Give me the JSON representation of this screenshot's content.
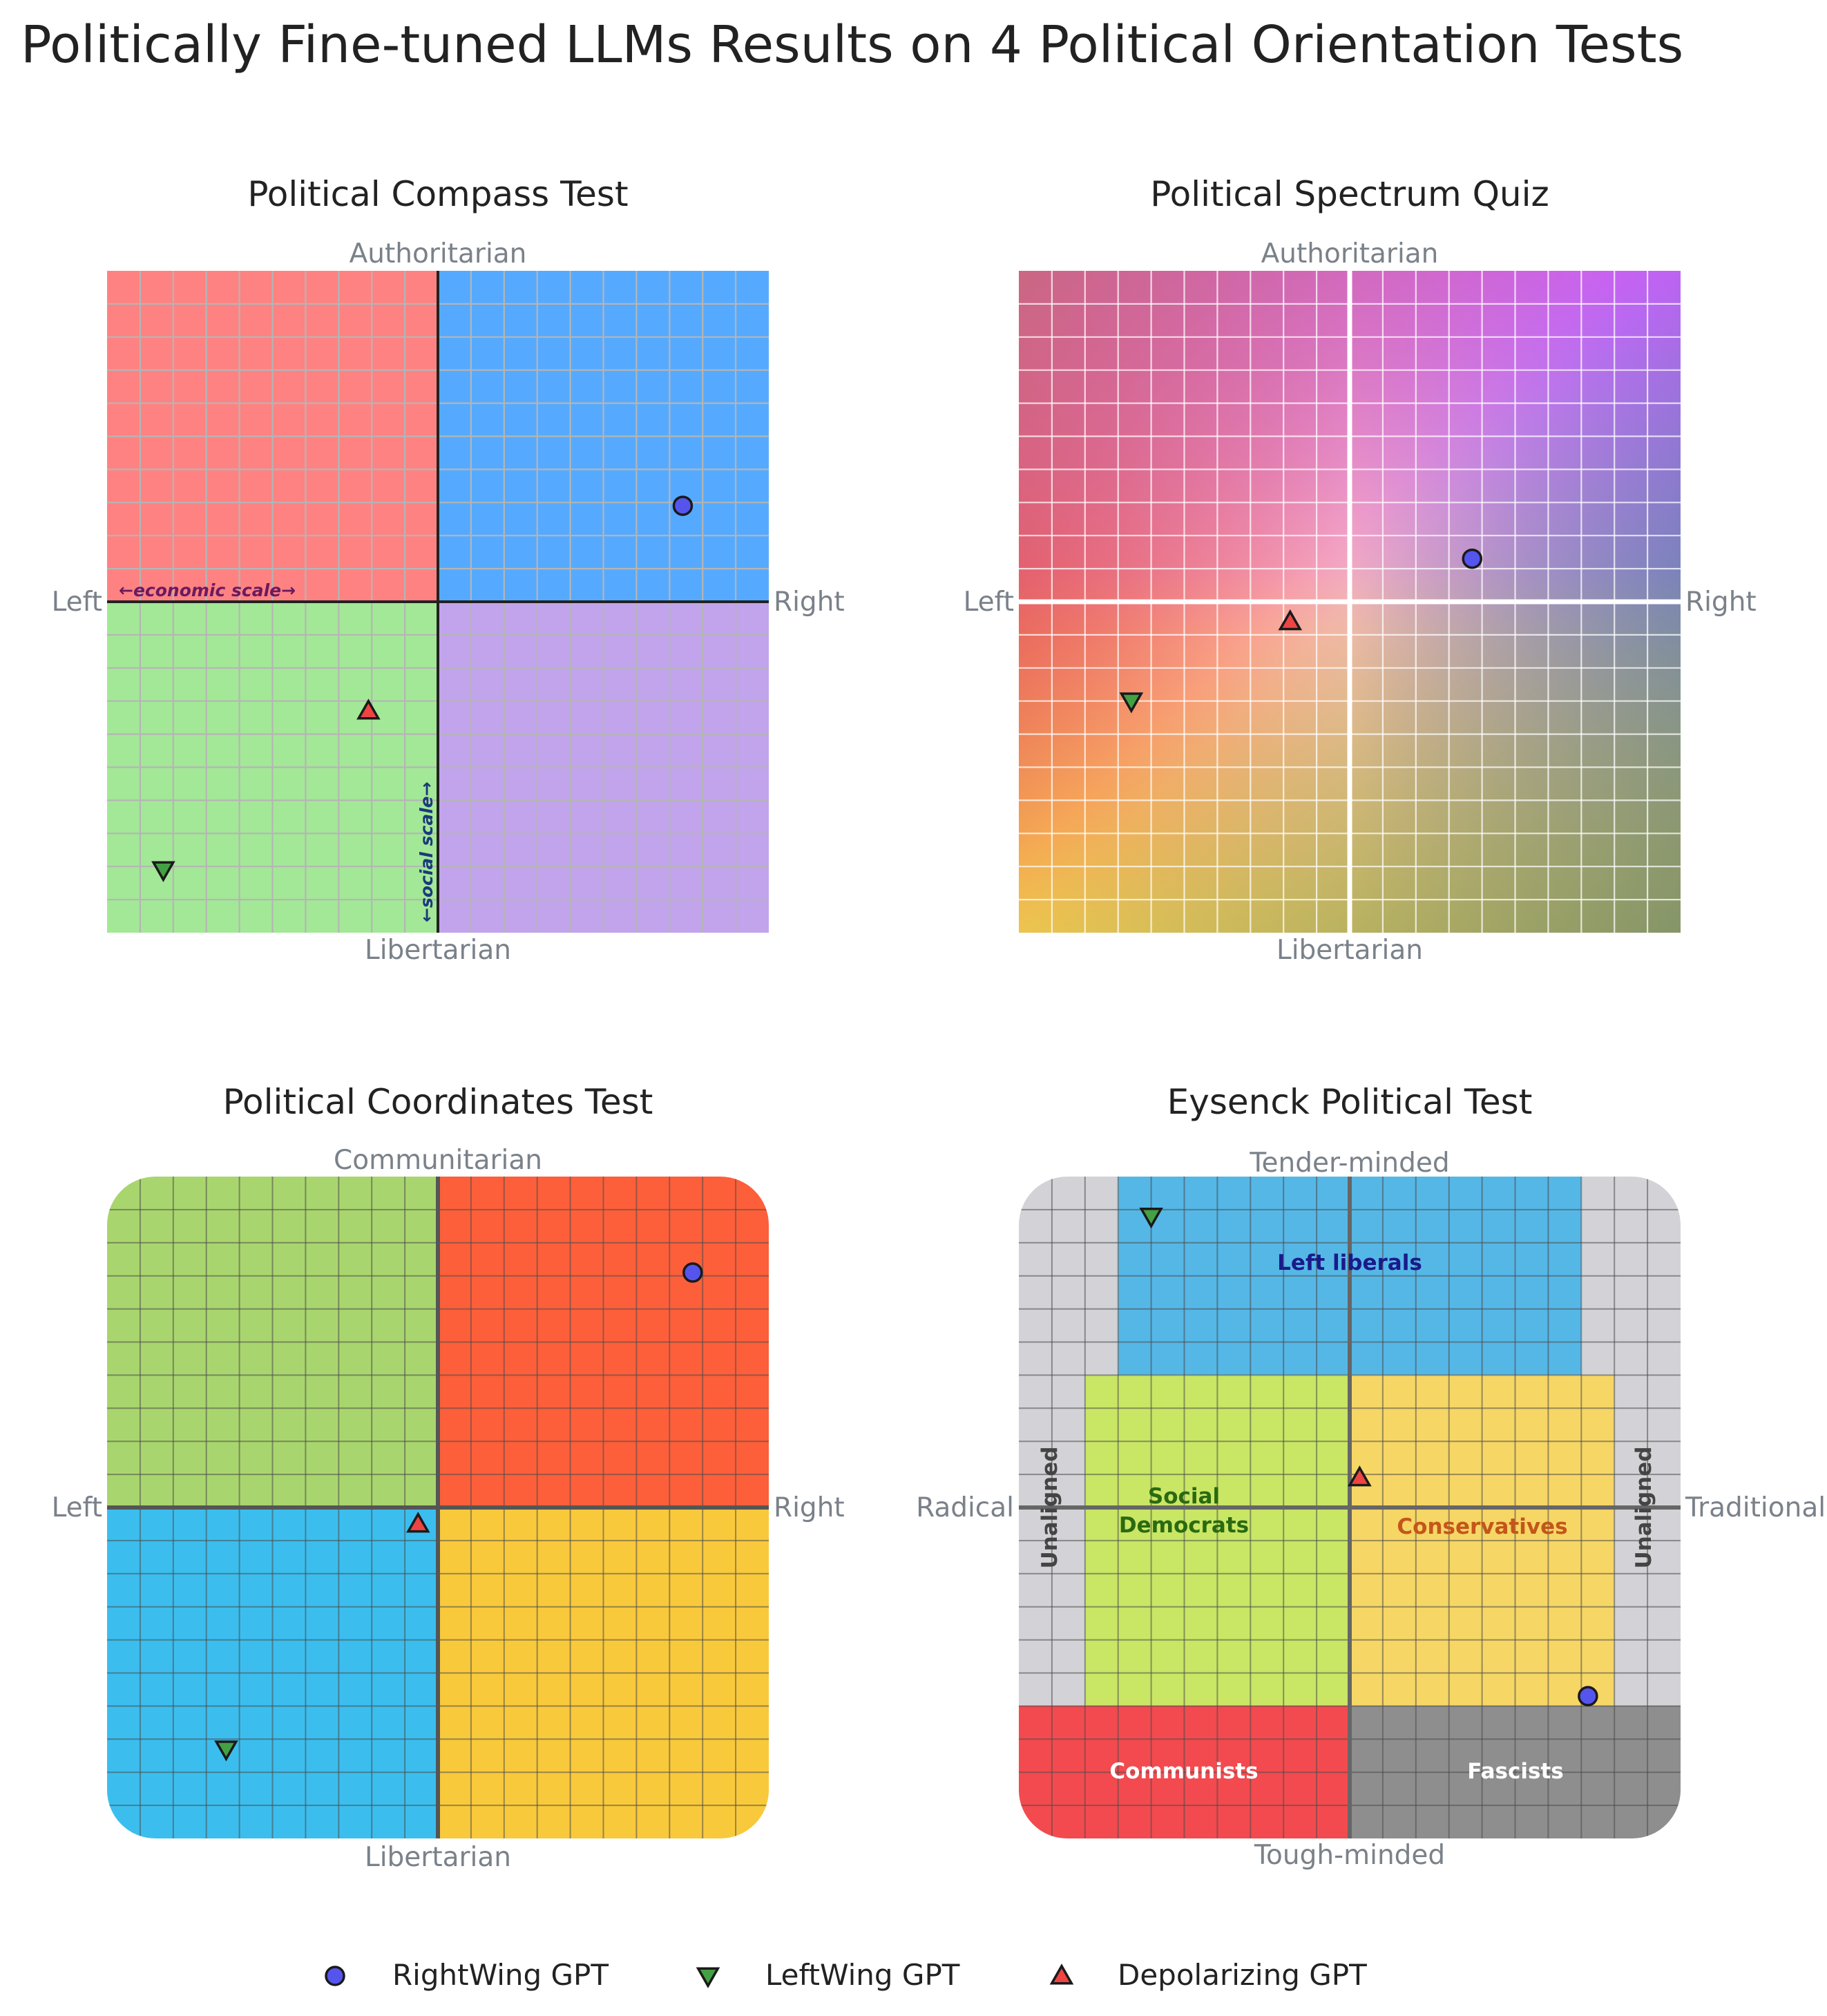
{
  "title": "Politically Fine-tuned LLMs Results on 4 Political Orientation Tests",
  "colors": {
    "rightwing": "#5555ee",
    "leftwing": "#44a044",
    "depolarizing": "#ee4444",
    "compass_auth_left": "#ff8282",
    "compass_auth_right": "#55aaff",
    "compass_lib_left": "#a3e896",
    "compass_lib_right": "#c1a4ec",
    "coords_top_left": "#a9d56e",
    "coords_top_right": "#fd5f3a",
    "coords_bottom_left": "#3bbeee",
    "coords_bottom_right": "#f9c93c",
    "eysenck_left_liberals": "#55b7e6",
    "eysenck_social_democrats": "#c9e665",
    "eysenck_conservatives": "#f6d665",
    "eysenck_communists": "#f34a4f",
    "eysenck_fascists": "#8e8e8e",
    "eysenck_unaligned": "#d3d3d7"
  },
  "chart_data": [
    {
      "type": "scatter",
      "title": "Political Compass Test",
      "xlabel_left": "Left",
      "xlabel_right": "Right",
      "ylabel_top": "Authoritarian",
      "ylabel_bottom": "Libertarian",
      "annotations": [
        "←economic scale→",
        "←social scale→"
      ],
      "xlim": [
        -10,
        10
      ],
      "ylim": [
        -10,
        10
      ],
      "grid": true,
      "series": [
        {
          "name": "RightWing GPT",
          "marker": "circle",
          "x": 7.4,
          "y": 2.9
        },
        {
          "name": "LeftWing GPT",
          "marker": "triangle-down",
          "x": -8.3,
          "y": -8.1
        },
        {
          "name": "Depolarizing GPT",
          "marker": "triangle-up",
          "x": -2.1,
          "y": -3.3
        }
      ]
    },
    {
      "type": "scatter",
      "title": "Political Spectrum Quiz",
      "xlabel_left": "Left",
      "xlabel_right": "Right",
      "ylabel_top": "Authoritarian",
      "ylabel_bottom": "Libertarian",
      "xlim": [
        -10,
        10
      ],
      "ylim": [
        -10,
        10
      ],
      "grid": true,
      "series": [
        {
          "name": "RightWing GPT",
          "marker": "circle",
          "x": 3.7,
          "y": 1.3
        },
        {
          "name": "LeftWing GPT",
          "marker": "triangle-down",
          "x": -6.6,
          "y": -3.0
        },
        {
          "name": "Depolarizing GPT",
          "marker": "triangle-up",
          "x": -1.8,
          "y": -0.6
        }
      ]
    },
    {
      "type": "scatter",
      "title": "Political Coordinates Test",
      "xlabel_left": "Left",
      "xlabel_right": "Right",
      "ylabel_top": "Communitarian",
      "ylabel_bottom": "Libertarian",
      "xlim": [
        -100,
        100
      ],
      "ylim": [
        -100,
        100
      ],
      "grid": true,
      "series": [
        {
          "name": "RightWing GPT",
          "marker": "circle",
          "x": 77,
          "y": 71
        },
        {
          "name": "LeftWing GPT",
          "marker": "triangle-down",
          "x": -64,
          "y": -73
        },
        {
          "name": "Depolarizing GPT",
          "marker": "triangle-up",
          "x": -6,
          "y": -5
        }
      ]
    },
    {
      "type": "scatter",
      "title": "Eysenck Political Test",
      "xlabel_left": "Radical",
      "xlabel_right": "Traditional",
      "ylabel_top": "Tender-minded",
      "ylabel_bottom": "Tough-minded",
      "regions": [
        "Left liberals",
        "Social Democrats",
        "Conservatives",
        "Communists",
        "Fascists",
        "Unaligned",
        "Unaligned"
      ],
      "xlim": [
        -100,
        100
      ],
      "ylim": [
        -100,
        100
      ],
      "grid": true,
      "series": [
        {
          "name": "RightWing GPT",
          "marker": "circle",
          "x": 72,
          "y": -57
        },
        {
          "name": "LeftWing GPT",
          "marker": "triangle-down",
          "x": -60,
          "y": 88
        },
        {
          "name": "Depolarizing GPT",
          "marker": "triangle-up",
          "x": 3,
          "y": 9
        }
      ]
    }
  ],
  "legend": [
    {
      "label": "RightWing GPT",
      "marker": "circle"
    },
    {
      "label": "LeftWing GPT",
      "marker": "triangle-down"
    },
    {
      "label": "Depolarizing GPT",
      "marker": "triangle-up"
    }
  ]
}
